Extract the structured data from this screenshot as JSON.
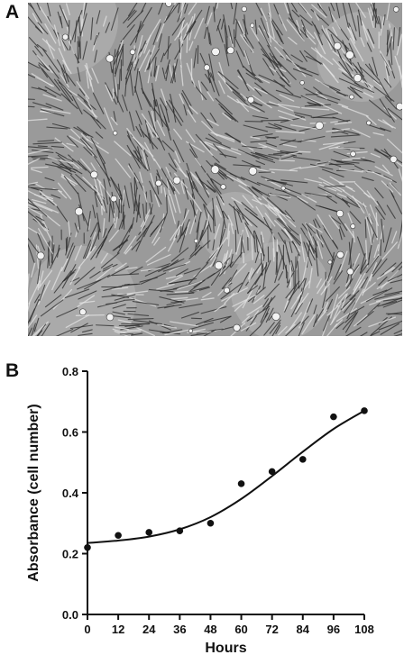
{
  "figure": {
    "panel_a_label": "A",
    "panel_b_label": "B"
  },
  "colors": {
    "ink": "#111111",
    "micrograph_background": "#9a9a9a",
    "cell_dark": "#2a2a2a",
    "cell_light": "#e8e8e8"
  },
  "chart_data": {
    "type": "scatter",
    "title": "",
    "xlabel": "Hours",
    "ylabel": "Absorbance (cell number)",
    "xlim": [
      0,
      108
    ],
    "ylim": [
      0,
      0.8
    ],
    "x_ticks": [
      0,
      12,
      24,
      36,
      48,
      60,
      72,
      84,
      96,
      108
    ],
    "y_ticks": [
      0.0,
      0.2,
      0.4,
      0.6,
      0.8
    ],
    "x_tick_labels": [
      "0",
      "12",
      "24",
      "36",
      "48",
      "60",
      "72",
      "84",
      "96",
      "108"
    ],
    "y_tick_labels": [
      "0.0",
      "0.2",
      "0.4",
      "0.6",
      "0.8"
    ],
    "grid": false,
    "points": {
      "x": [
        0,
        12,
        24,
        36,
        48,
        60,
        72,
        84,
        96,
        108
      ],
      "y": [
        0.22,
        0.26,
        0.27,
        0.275,
        0.3,
        0.43,
        0.47,
        0.51,
        0.65,
        0.67
      ]
    },
    "fit_curve": {
      "x": [
        0,
        12,
        24,
        36,
        48,
        60,
        72,
        84,
        96,
        108
      ],
      "y": [
        0.235,
        0.243,
        0.256,
        0.28,
        0.32,
        0.38,
        0.455,
        0.535,
        0.61,
        0.67
      ]
    }
  }
}
